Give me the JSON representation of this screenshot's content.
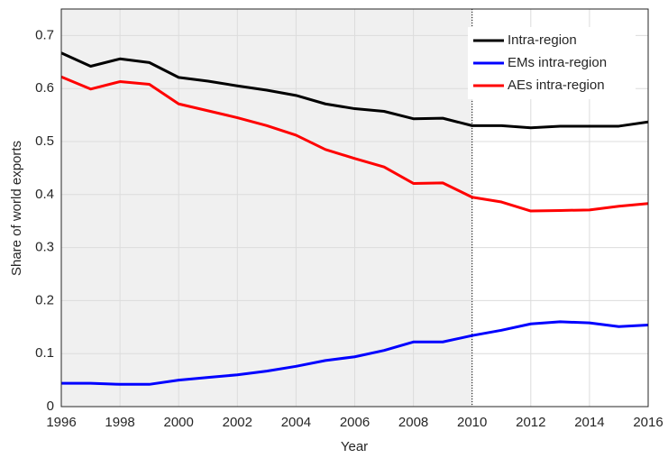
{
  "chart_data": {
    "type": "line",
    "xlabel": "Year",
    "ylabel": "Share of world exports",
    "x": [
      1996,
      1997,
      1998,
      1999,
      2000,
      2001,
      2002,
      2003,
      2004,
      2005,
      2006,
      2007,
      2008,
      2009,
      2010,
      2011,
      2012,
      2013,
      2014,
      2015,
      2016
    ],
    "series": [
      {
        "name": "Intra-region",
        "color": "#000000",
        "values": [
          0.667,
          0.642,
          0.656,
          0.649,
          0.621,
          0.614,
          0.605,
          0.597,
          0.587,
          0.571,
          0.562,
          0.557,
          0.543,
          0.544,
          0.53,
          0.53,
          0.526,
          0.529,
          0.529,
          0.529,
          0.537
        ]
      },
      {
        "name": "EMs intra-region",
        "color": "#0000ff",
        "values": [
          0.044,
          0.044,
          0.042,
          0.042,
          0.05,
          0.055,
          0.06,
          0.067,
          0.076,
          0.087,
          0.094,
          0.106,
          0.122,
          0.122,
          0.134,
          0.144,
          0.156,
          0.16,
          0.158,
          0.151,
          0.154
        ]
      },
      {
        "name": "AEs intra-region",
        "color": "#ff0000",
        "values": [
          0.622,
          0.599,
          0.613,
          0.608,
          0.571,
          0.558,
          0.545,
          0.53,
          0.512,
          0.485,
          0.468,
          0.452,
          0.421,
          0.422,
          0.395,
          0.386,
          0.369,
          0.37,
          0.371,
          0.378,
          0.383
        ]
      }
    ],
    "xlim": [
      1996,
      2016
    ],
    "xticks": [
      1996,
      1998,
      2000,
      2002,
      2004,
      2006,
      2008,
      2010,
      2012,
      2014,
      2016
    ],
    "ylim": [
      0,
      0.75
    ],
    "yticks": [
      0,
      0.1,
      0.2,
      0.3,
      0.4,
      0.5,
      0.6,
      0.7
    ],
    "grid": true,
    "legend": "upper right",
    "shaded_xrange": [
      1996,
      2010
    ]
  }
}
